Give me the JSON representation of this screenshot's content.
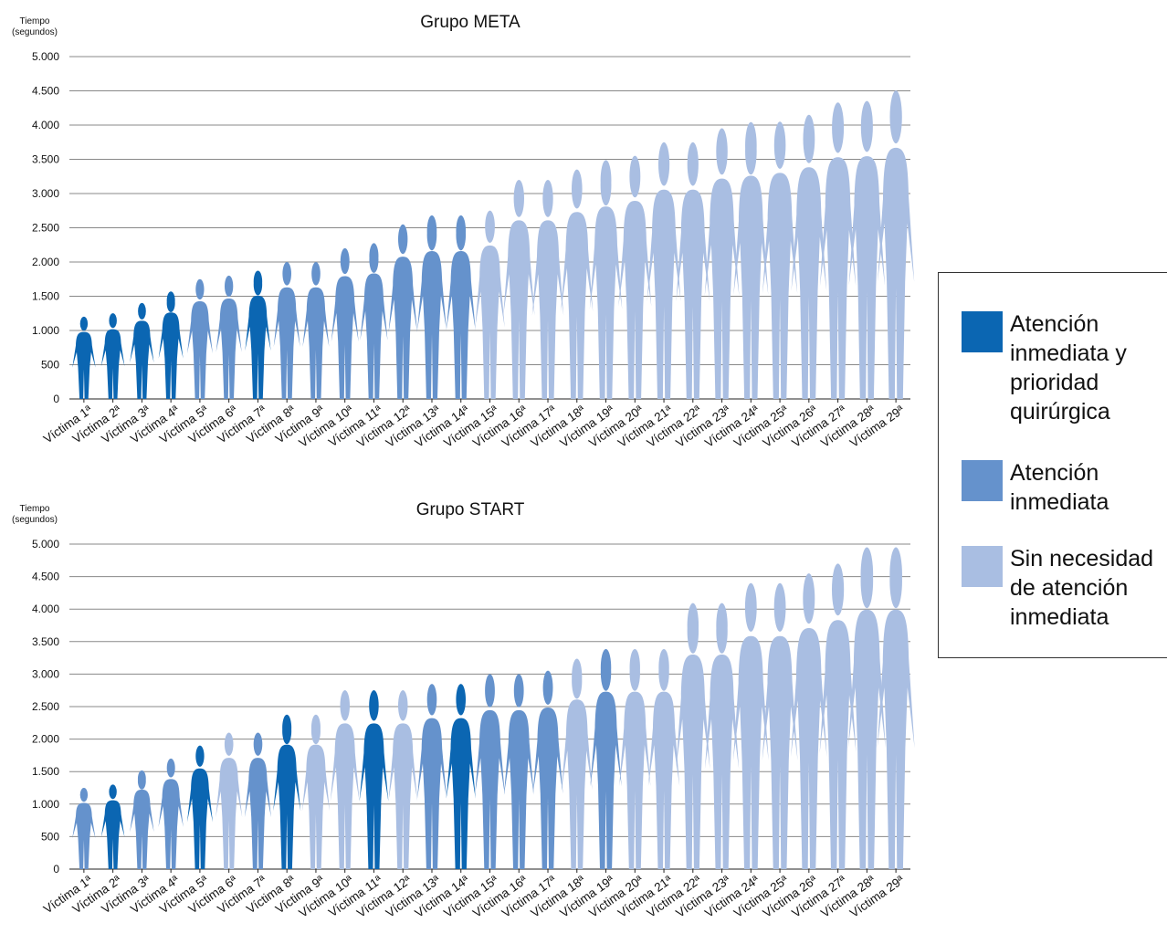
{
  "chart_data": [
    {
      "type": "pictogram",
      "title": "Grupo META",
      "ylabel": [
        "Tiempo",
        "(segundos)"
      ],
      "categories": [
        "Víctima 1ª",
        "Víctima 2ª",
        "Víctima 3ª",
        "Víctima 4ª",
        "Víctima 5ª",
        "Víctima 6ª",
        "Víctima 7ª",
        "Víctima 8ª",
        "Víctima 9ª",
        "Víctima 10ª",
        "Víctima 11ª",
        "Víctima 12ª",
        "Víctima 13ª",
        "Víctima 14ª",
        "Víctima 15ª",
        "Víctima 16ª",
        "Víctima 17ª",
        "Víctima 18ª",
        "Víctima 19ª",
        "Víctima 20ª",
        "Víctima 21ª",
        "Víctima 22ª",
        "Víctima 23ª",
        "Víctima 24ª",
        "Víctima 25ª",
        "Víctima 26ª",
        "Víctima 27ª",
        "Víctima 28ª",
        "Víctima 29ª"
      ],
      "values": [
        1200,
        1250,
        1400,
        1550,
        1750,
        1800,
        1850,
        2000,
        2000,
        2200,
        2250,
        2550,
        2650,
        2650,
        2750,
        3200,
        3200,
        3350,
        3450,
        3550,
        3750,
        3750,
        3950,
        4000,
        4050,
        4150,
        4330,
        4350,
        4500
      ],
      "colors": [
        "#0b66b2",
        "#0b66b2",
        "#0b66b2",
        "#0b66b2",
        "#6592cc",
        "#6592cc",
        "#0b66b2",
        "#6592cc",
        "#6592cc",
        "#6592cc",
        "#6592cc",
        "#6592cc",
        "#6592cc",
        "#6592cc",
        "#a9bee2",
        "#a9bee2",
        "#a9bee2",
        "#a9bee2",
        "#a9bee2",
        "#a9bee2",
        "#a9bee2",
        "#a9bee2",
        "#a9bee2",
        "#a9bee2",
        "#a9bee2",
        "#a9bee2",
        "#a9bee2",
        "#a9bee2",
        "#a9bee2"
      ],
      "ylim": [
        0,
        5000
      ],
      "yticks": [
        0,
        500,
        {
          "value": 1000,
          "label": "1.000"
        },
        {
          "value": 1500,
          "label": "1.500"
        },
        {
          "value": 2000,
          "label": "2.000"
        },
        {
          "value": 2500,
          "label": "2.500"
        },
        {
          "value": 3000,
          "label": "3.000"
        },
        {
          "value": 3500,
          "label": "3.500"
        },
        {
          "value": 4000,
          "label": "4.000"
        },
        {
          "value": 4500,
          "label": "4.500"
        },
        {
          "value": 5000,
          "label": "5.000"
        }
      ],
      "grid": true
    },
    {
      "type": "pictogram",
      "title": "Grupo START",
      "ylabel": [
        "Tiempo",
        "(segundos)"
      ],
      "categories": [
        "Víctima 1ª",
        "Víctima 2ª",
        "Víctima 3ª",
        "Víctima 4ª",
        "Víctima 5ª",
        "Víctima 6ª",
        "Víctima 7ª",
        "Víctima 8ª",
        "Víctima 9ª",
        "Víctima 10ª",
        "Víctima 11ª",
        "Víctima 12ª",
        "Víctima 13ª",
        "Víctima 14ª",
        "Víctima 15ª",
        "Víctima 16ª",
        "Víctima 17ª",
        "Víctima 18ª",
        "Víctima 19ª",
        "Víctima 20ª",
        "Víctima 21ª",
        "Víctima 22ª",
        "Víctima 23ª",
        "Víctima 24ª",
        "Víctima 25ª",
        "Víctima 26ª",
        "Víctima 27ª",
        "Víctima 28ª",
        "Víctima 29ª"
      ],
      "values": [
        1250,
        1300,
        1500,
        1700,
        1900,
        2100,
        2100,
        2350,
        2350,
        2750,
        2750,
        2750,
        2850,
        2850,
        3000,
        3000,
        3050,
        3200,
        3350,
        3350,
        3350,
        4050,
        4050,
        4400,
        4400,
        4550,
        4700,
        4900,
        4900
      ],
      "colors": [
        "#6592cc",
        "#0b66b2",
        "#6592cc",
        "#6592cc",
        "#0b66b2",
        "#a9bee2",
        "#6592cc",
        "#0b66b2",
        "#a9bee2",
        "#a9bee2",
        "#0b66b2",
        "#a9bee2",
        "#6592cc",
        "#0b66b2",
        "#6592cc",
        "#6592cc",
        "#6592cc",
        "#a9bee2",
        "#6592cc",
        "#a9bee2",
        "#a9bee2",
        "#a9bee2",
        "#a9bee2",
        "#a9bee2",
        "#a9bee2",
        "#a9bee2",
        "#a9bee2",
        "#a9bee2",
        "#a9bee2"
      ],
      "ylim": [
        0,
        5000
      ],
      "yticks": [
        0,
        500,
        {
          "value": 1000,
          "label": "1.000"
        },
        {
          "value": 1500,
          "label": "1.500"
        },
        {
          "value": 2000,
          "label": "2.000"
        },
        {
          "value": 2500,
          "label": "2.500"
        },
        {
          "value": 3000,
          "label": "3.000"
        },
        {
          "value": 3500,
          "label": "3.500"
        },
        {
          "value": 4000,
          "label": "4.000"
        },
        {
          "value": 4500,
          "label": "4.500"
        },
        {
          "value": 5000,
          "label": "5.000"
        }
      ],
      "grid": true
    }
  ],
  "legend": [
    {
      "label": "Atención inmediata y prioridad quirúrgica",
      "color": "#0b66b2"
    },
    {
      "label": "Atención inmediata",
      "color": "#6592cc"
    },
    {
      "label": "Sin necesidad de atención inmediata",
      "color": "#a9bee2"
    }
  ]
}
